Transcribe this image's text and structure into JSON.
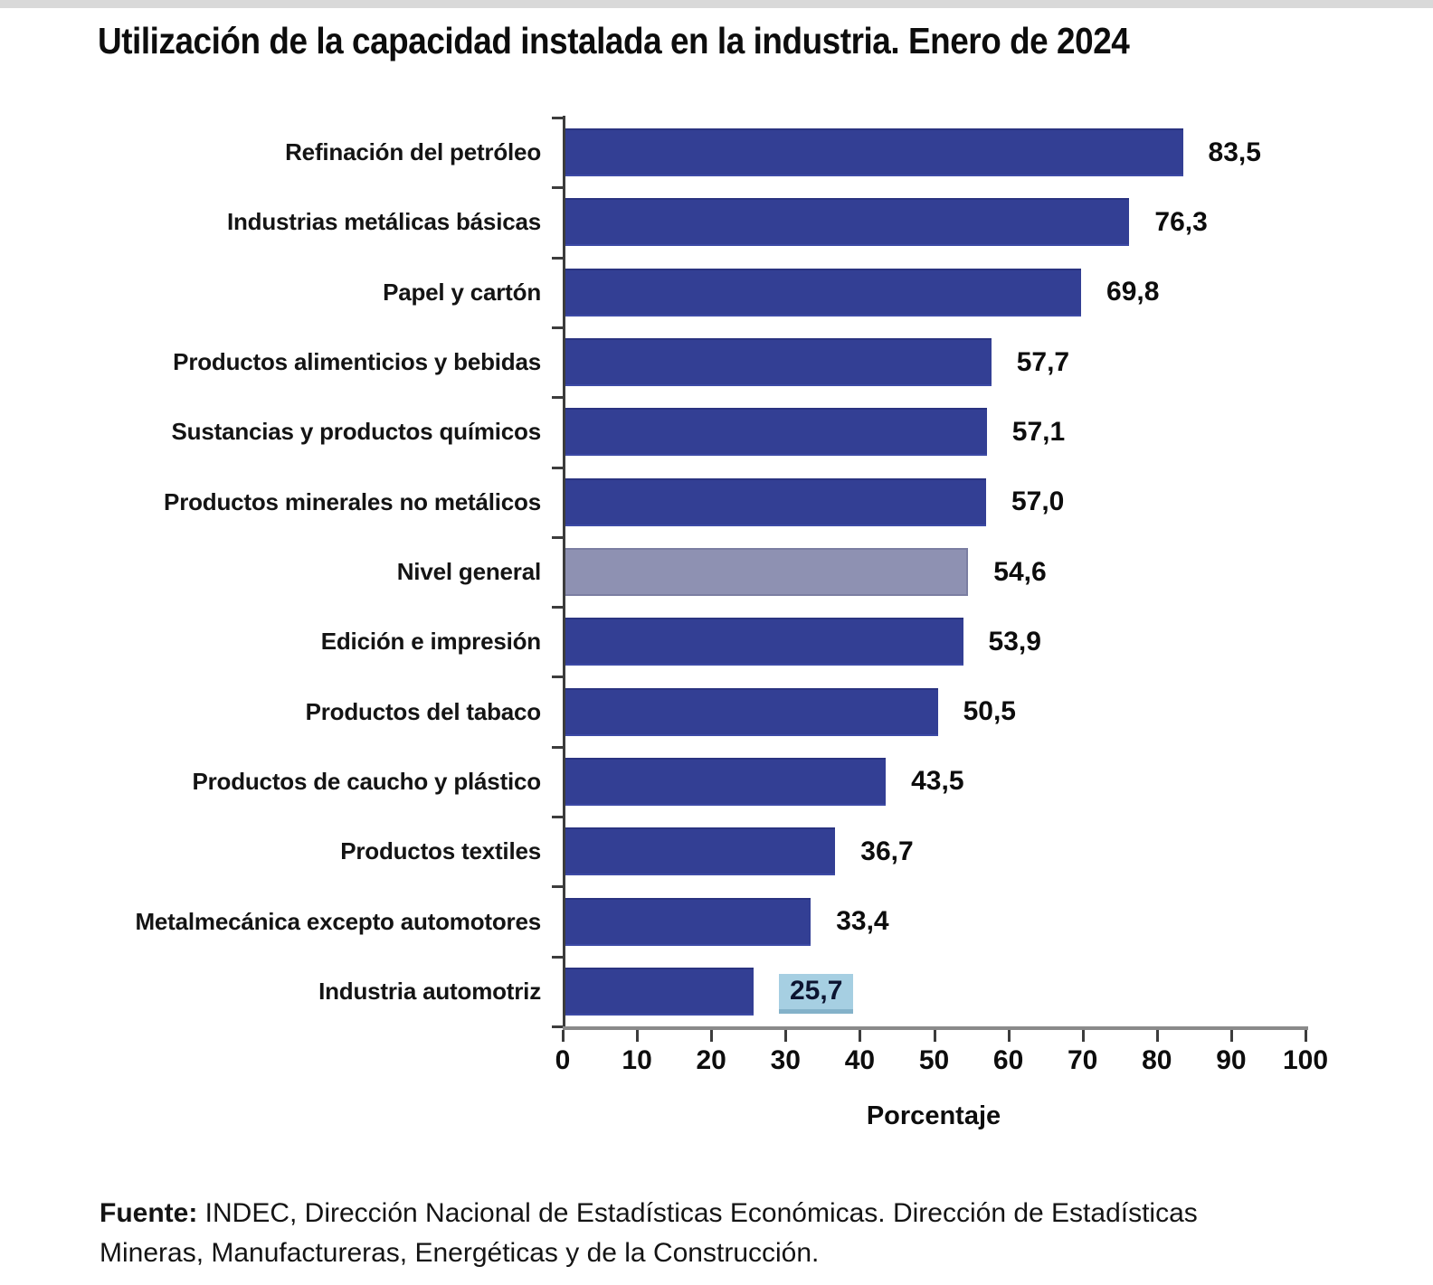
{
  "title": "Utilización de la capacidad instalada en la industria. Enero de 2024",
  "chart_data": {
    "type": "bar",
    "orientation": "horizontal",
    "title": "Utilización de la capacidad instalada en la industria. Enero de 2024",
    "xlabel": "Porcentaje",
    "ylabel": "",
    "xlim": [
      0,
      100
    ],
    "x_ticks": [
      0,
      10,
      20,
      30,
      40,
      50,
      60,
      70,
      80,
      90,
      100
    ],
    "grid": false,
    "legend": "none",
    "categories": [
      "Refinación del petróleo",
      "Industrias metálicas básicas",
      "Papel y cartón",
      "Productos alimenticios y bebidas",
      "Sustancias y productos químicos",
      "Productos minerales no metálicos",
      "Nivel general",
      "Edición e impresión",
      "Productos del tabaco",
      "Productos de caucho y plástico",
      "Productos textiles",
      "Metalmecánica excepto automotores",
      "Industria automotriz"
    ],
    "values": [
      83.5,
      76.3,
      69.8,
      57.7,
      57.1,
      57.0,
      54.6,
      53.9,
      50.5,
      43.5,
      36.7,
      33.4,
      25.7
    ],
    "rows": [
      {
        "label": "Refinación del petróleo",
        "value": 83.5,
        "value_label": "83,5",
        "style": "normal",
        "value_highlight": false
      },
      {
        "label": "Industrias metálicas básicas",
        "value": 76.3,
        "value_label": "76,3",
        "style": "normal",
        "value_highlight": false
      },
      {
        "label": "Papel y cartón",
        "value": 69.8,
        "value_label": "69,8",
        "style": "normal",
        "value_highlight": false
      },
      {
        "label": "Productos alimenticios y bebidas",
        "value": 57.7,
        "value_label": "57,7",
        "style": "normal",
        "value_highlight": false
      },
      {
        "label": "Sustancias y productos químicos",
        "value": 57.1,
        "value_label": "57,1",
        "style": "normal",
        "value_highlight": false
      },
      {
        "label": "Productos minerales no metálicos",
        "value": 57.0,
        "value_label": "57,0",
        "style": "normal",
        "value_highlight": false
      },
      {
        "label": "Nivel general",
        "value": 54.6,
        "value_label": "54,6",
        "style": "general",
        "value_highlight": false
      },
      {
        "label": "Edición e impresión",
        "value": 53.9,
        "value_label": "53,9",
        "style": "normal",
        "value_highlight": false
      },
      {
        "label": "Productos del tabaco",
        "value": 50.5,
        "value_label": "50,5",
        "style": "normal",
        "value_highlight": false
      },
      {
        "label": "Productos de caucho y plástico",
        "value": 43.5,
        "value_label": "43,5",
        "style": "normal",
        "value_highlight": false
      },
      {
        "label": "Productos textiles",
        "value": 36.7,
        "value_label": "36,7",
        "style": "normal",
        "value_highlight": false
      },
      {
        "label": "Metalmecánica excepto automotores",
        "value": 33.4,
        "value_label": "33,4",
        "style": "normal",
        "value_highlight": false
      },
      {
        "label": "Industria automotriz",
        "value": 25.7,
        "value_label": "25,7",
        "style": "normal",
        "value_highlight": true
      }
    ],
    "colors": {
      "bar": "#333f94",
      "nivel_general_bar": "#8e91b2",
      "selection_highlight": "#a6cfe2",
      "x_axis_line": "#8a8a8a",
      "y_axis_line": "#3c3c3c"
    }
  },
  "source": {
    "label": "Fuente:",
    "line1": " INDEC, Dirección Nacional de Estadísticas Económicas. Dirección de Estadísticas",
    "line2": "Mineras, Manufactureras, Energéticas y de la Construcción."
  }
}
